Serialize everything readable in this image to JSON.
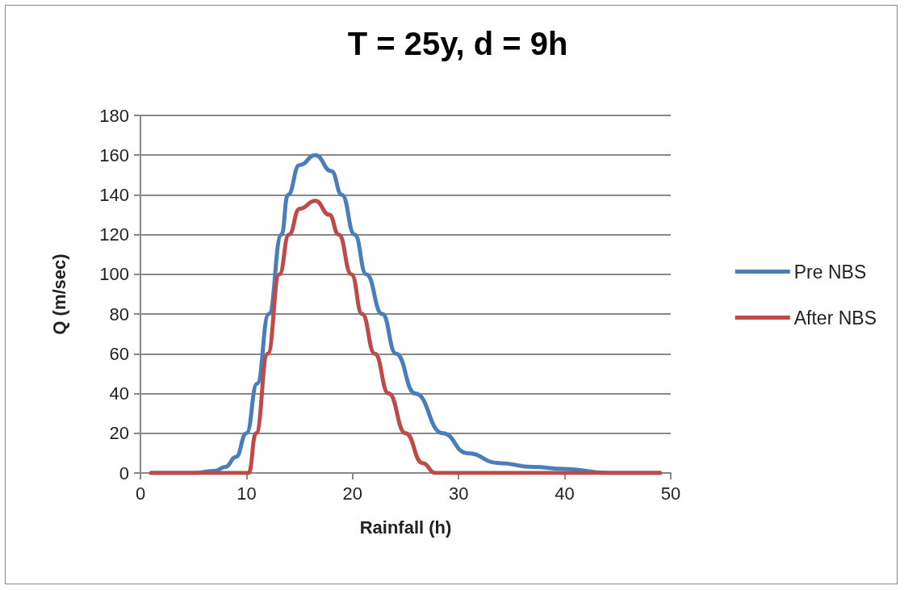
{
  "chart_data": {
    "type": "line",
    "title": "T = 25y, d = 9h",
    "xlabel": "Rainfall (h)",
    "ylabel": "Q (m/sec)",
    "xlim": [
      0,
      50
    ],
    "xticks": [
      0,
      10,
      20,
      30,
      40,
      50
    ],
    "ylim": [
      0,
      180
    ],
    "yticks": [
      0,
      20,
      40,
      60,
      80,
      100,
      120,
      140,
      160,
      180
    ],
    "grid": "y",
    "legend": "right",
    "marker": "none",
    "line_style": "solid",
    "series": [
      {
        "name": "Pre NBS",
        "color": "#4a7ebb",
        "x": [
          1,
          5,
          7,
          8,
          9,
          10,
          11,
          12.1,
          13.3,
          13.9,
          15,
          16.5,
          18,
          19,
          20.2,
          21.3,
          22.8,
          24.1,
          25.9,
          28.5,
          30.8,
          33.8,
          37,
          40,
          44,
          49
        ],
        "values": [
          0,
          0,
          1,
          3,
          8,
          20,
          45,
          80,
          120,
          140,
          155,
          160,
          152,
          140,
          120,
          100,
          80,
          60,
          40,
          20,
          10,
          5,
          3,
          2,
          0,
          0
        ]
      },
      {
        "name": "After NBS",
        "color": "#be4b48",
        "x": [
          1,
          5,
          10,
          10.2,
          10.9,
          12,
          13.1,
          14,
          15,
          16.5,
          17.8,
          18.7,
          19.9,
          20.9,
          22.1,
          23.4,
          25,
          26.6,
          27.8,
          30,
          40,
          49
        ],
        "values": [
          0,
          0,
          0,
          0,
          20,
          60,
          100,
          120,
          133,
          137,
          130,
          120,
          100,
          80,
          60,
          40,
          20,
          5,
          0,
          0,
          0,
          0
        ]
      }
    ]
  }
}
